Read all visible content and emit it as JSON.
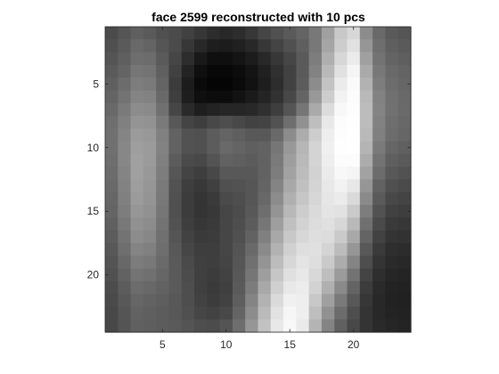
{
  "chart_data": {
    "type": "heatmap",
    "title": "face 2599 reconstructed with 10 pcs",
    "xlabel": "",
    "ylabel": "",
    "colormap": "gray",
    "xlim": [
      0.5,
      24.5
    ],
    "ylim": [
      0.5,
      24.5
    ],
    "y_reversed": true,
    "grid": false,
    "x_ticks": [
      5,
      10,
      15,
      20
    ],
    "y_ticks": [
      5,
      10,
      15,
      20
    ],
    "clim": [
      0,
      255
    ],
    "values": [
      [
        75,
        85,
        95,
        90,
        80,
        75,
        65,
        55,
        45,
        40,
        45,
        55,
        70,
        80,
        90,
        100,
        120,
        160,
        200,
        215,
        140,
        105,
        90,
        85
      ],
      [
        80,
        90,
        105,
        100,
        85,
        75,
        55,
        40,
        30,
        28,
        32,
        40,
        55,
        68,
        80,
        95,
        120,
        165,
        205,
        225,
        150,
        110,
        95,
        90
      ],
      [
        85,
        95,
        110,
        108,
        90,
        70,
        45,
        25,
        15,
        15,
        20,
        28,
        40,
        55,
        70,
        90,
        125,
        175,
        215,
        235,
        160,
        115,
        100,
        95
      ],
      [
        90,
        100,
        118,
        115,
        95,
        65,
        35,
        15,
        8,
        8,
        12,
        20,
        32,
        48,
        65,
        90,
        130,
        185,
        225,
        245,
        170,
        120,
        105,
        100
      ],
      [
        95,
        108,
        125,
        122,
        100,
        60,
        28,
        10,
        5,
        5,
        10,
        18,
        30,
        45,
        65,
        92,
        140,
        195,
        235,
        250,
        178,
        125,
        108,
        102
      ],
      [
        100,
        115,
        132,
        130,
        105,
        62,
        30,
        15,
        12,
        12,
        18,
        26,
        36,
        50,
        72,
        100,
        152,
        205,
        242,
        252,
        185,
        130,
        112,
        105
      ],
      [
        105,
        122,
        140,
        138,
        112,
        70,
        42,
        30,
        35,
        38,
        38,
        40,
        48,
        62,
        85,
        118,
        170,
        220,
        248,
        253,
        188,
        132,
        113,
        106
      ],
      [
        110,
        128,
        148,
        146,
        122,
        88,
        68,
        62,
        72,
        78,
        72,
        66,
        68,
        82,
        110,
        145,
        190,
        232,
        252,
        254,
        188,
        130,
        110,
        104
      ],
      [
        112,
        132,
        155,
        152,
        128,
        98,
        82,
        80,
        92,
        100,
        95,
        88,
        88,
        105,
        140,
        172,
        205,
        238,
        253,
        255,
        185,
        128,
        108,
        102
      ],
      [
        112,
        135,
        158,
        155,
        130,
        98,
        82,
        80,
        92,
        105,
        100,
        95,
        98,
        118,
        152,
        182,
        212,
        240,
        254,
        255,
        180,
        122,
        102,
        96
      ],
      [
        110,
        135,
        160,
        155,
        128,
        92,
        75,
        72,
        84,
        98,
        95,
        92,
        98,
        122,
        158,
        185,
        212,
        238,
        252,
        252,
        172,
        115,
        95,
        90
      ],
      [
        108,
        132,
        160,
        152,
        125,
        86,
        68,
        62,
        72,
        88,
        88,
        88,
        98,
        125,
        162,
        188,
        210,
        235,
        248,
        245,
        162,
        108,
        88,
        82
      ],
      [
        105,
        130,
        158,
        150,
        122,
        82,
        62,
        56,
        64,
        80,
        82,
        86,
        100,
        132,
        168,
        192,
        212,
        232,
        242,
        232,
        150,
        98,
        80,
        75
      ],
      [
        102,
        128,
        155,
        148,
        120,
        80,
        60,
        52,
        58,
        74,
        78,
        86,
        104,
        140,
        176,
        198,
        215,
        230,
        235,
        218,
        138,
        90,
        72,
        68
      ],
      [
        100,
        125,
        150,
        145,
        118,
        80,
        60,
        52,
        56,
        70,
        76,
        88,
        110,
        148,
        184,
        205,
        218,
        228,
        226,
        202,
        125,
        82,
        65,
        62
      ],
      [
        96,
        120,
        145,
        140,
        115,
        82,
        62,
        55,
        58,
        70,
        78,
        92,
        118,
        158,
        192,
        210,
        220,
        224,
        215,
        185,
        112,
        74,
        58,
        55
      ],
      [
        92,
        115,
        140,
        135,
        112,
        85,
        66,
        58,
        60,
        70,
        80,
        98,
        128,
        168,
        200,
        215,
        222,
        220,
        202,
        168,
        100,
        66,
        52,
        50
      ],
      [
        88,
        110,
        132,
        128,
        110,
        88,
        70,
        62,
        62,
        70,
        84,
        105,
        138,
        178,
        208,
        222,
        224,
        212,
        188,
        150,
        88,
        58,
        46,
        44
      ],
      [
        84,
        104,
        124,
        120,
        106,
        90,
        74,
        64,
        62,
        68,
        86,
        112,
        148,
        188,
        215,
        228,
        222,
        202,
        172,
        132,
        78,
        52,
        42,
        40
      ],
      [
        80,
        98,
        116,
        112,
        102,
        90,
        76,
        64,
        60,
        66,
        88,
        118,
        158,
        198,
        224,
        232,
        216,
        190,
        155,
        115,
        68,
        46,
        38,
        36
      ],
      [
        76,
        92,
        108,
        104,
        98,
        90,
        78,
        64,
        58,
        64,
        90,
        124,
        168,
        208,
        232,
        236,
        210,
        176,
        138,
        100,
        60,
        42,
        35,
        34
      ],
      [
        74,
        88,
        102,
        98,
        94,
        88,
        78,
        66,
        60,
        66,
        94,
        132,
        178,
        218,
        240,
        238,
        200,
        160,
        122,
        88,
        55,
        40,
        34,
        33
      ],
      [
        72,
        85,
        98,
        95,
        92,
        88,
        80,
        70,
        66,
        72,
        100,
        140,
        186,
        226,
        246,
        238,
        190,
        145,
        108,
        78,
        52,
        40,
        35,
        34
      ],
      [
        72,
        84,
        96,
        94,
        92,
        90,
        84,
        78,
        76,
        84,
        110,
        150,
        194,
        232,
        248,
        234,
        180,
        132,
        96,
        72,
        52,
        42,
        38,
        36
      ]
    ]
  }
}
